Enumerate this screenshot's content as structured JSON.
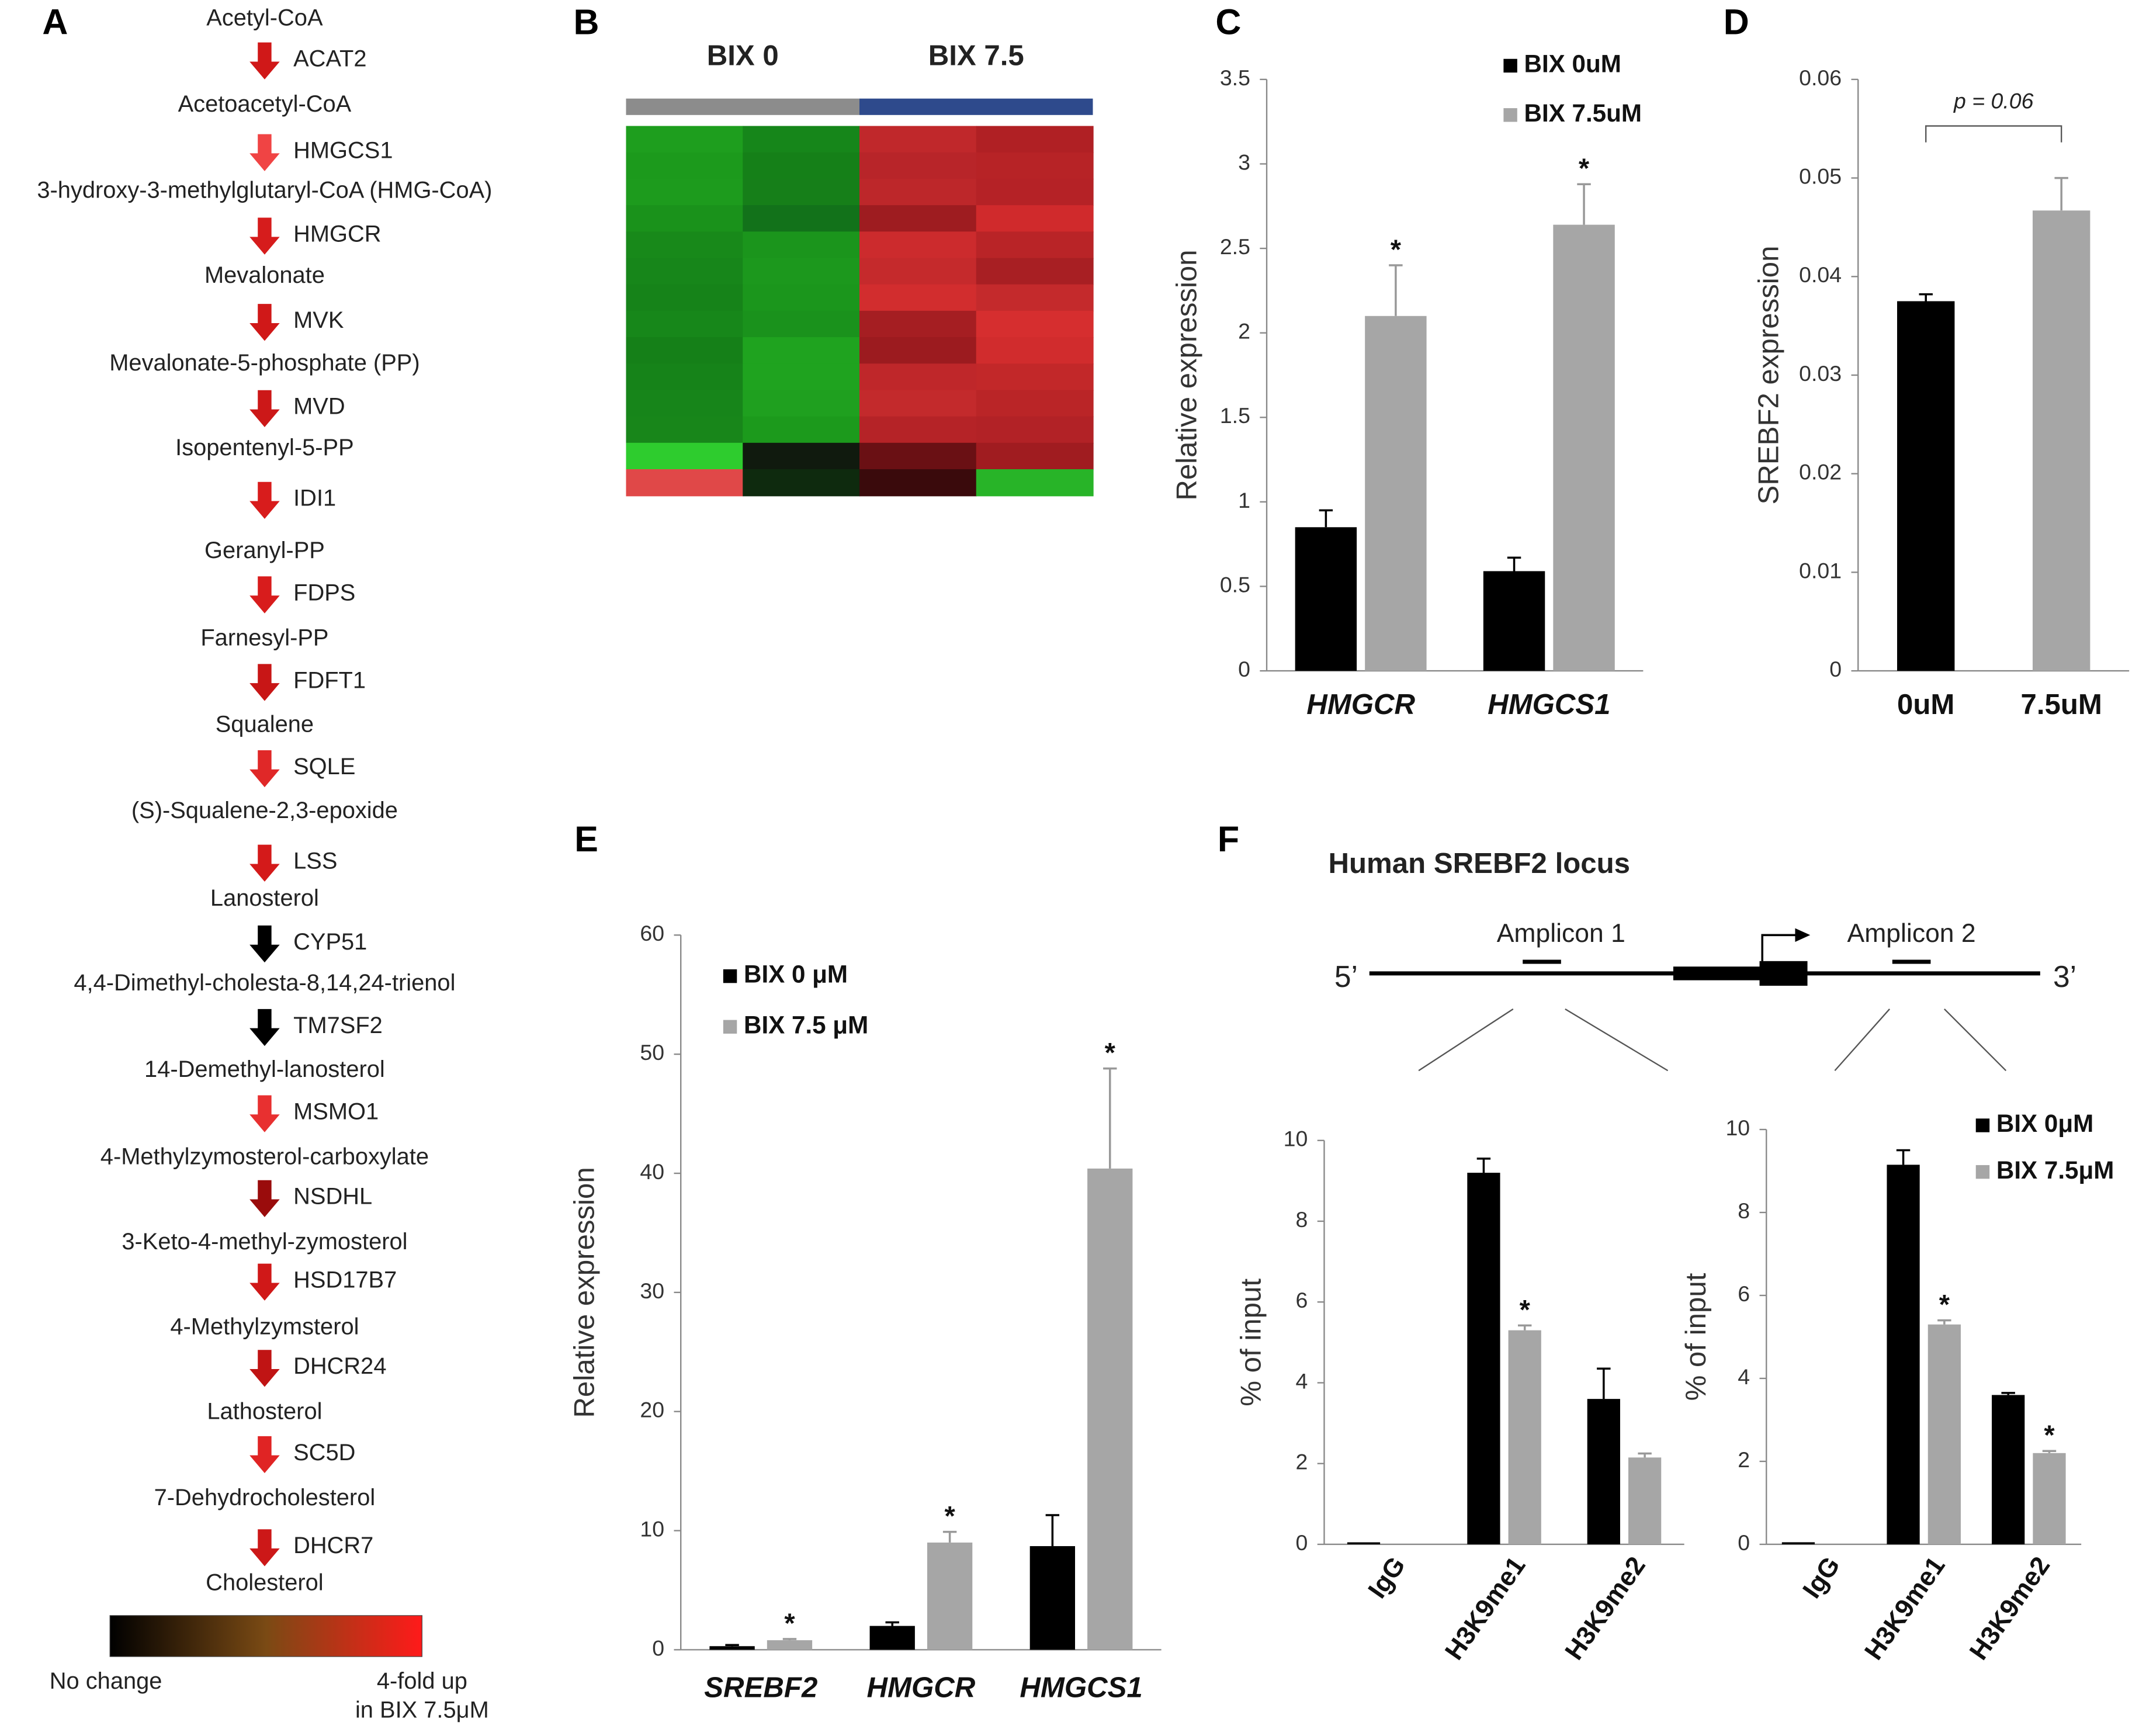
{
  "panel_labels": [
    "A",
    "B",
    "C",
    "D",
    "E",
    "F"
  ],
  "pathway": {
    "metabolites": [
      "Acetyl-CoA",
      "Acetoacetyl-CoA",
      "3-hydroxy-3-methylglutaryl-CoA (HMG-CoA)",
      "Mevalonate",
      "Mevalonate-5-phosphate (PP)",
      "Isopentenyl-5-PP",
      "Geranyl-PP",
      "Farnesyl-PP",
      "Squalene",
      "(S)-Squalene-2,3-epoxide",
      "Lanosterol",
      "4,4-Dimethyl-cholesta-8,14,24-trienol",
      "14-Demethyl-lanosterol",
      "4-Methylzymosterol-carboxylate",
      "3-Keto-4-methyl-zymosterol",
      "4-Methylzymsterol",
      "Lathosterol",
      "7-Dehydrocholesterol",
      "Cholesterol"
    ],
    "enzymes": [
      "ACAT2",
      "HMGCS1",
      "HMGCR",
      "MVK",
      "MVD",
      "IDI1",
      "FDPS",
      "FDFT1",
      "SQLE",
      "LSS",
      "CYP51",
      "TM7SF2",
      "MSMO1",
      "NSDHL",
      "HSD17B7",
      "DHCR24",
      "SC5D",
      "DHCR7"
    ],
    "arrow_colors": [
      "#d01818",
      "#f04444",
      "#d61c1c",
      "#d01818",
      "#cc1818",
      "#d81c1c",
      "#d81c1c",
      "#c81616",
      "#e02828",
      "#d41a1a",
      "#000000",
      "#000000",
      "#e83030",
      "#9a0c0c",
      "#d01818",
      "#c01414",
      "#e02424",
      "#cc1818"
    ],
    "scale": {
      "low": "No change",
      "high": [
        "4-fold up",
        "in BIX 7.5μM"
      ],
      "colors": [
        "#000000",
        "#7a4a14",
        "#ff1a1a"
      ]
    }
  },
  "heatmap": {
    "groups": [
      {
        "name": "BIX 0",
        "color": "#8c8c8c"
      },
      {
        "name": "BIX 7.5",
        "color": "#2e4a8c"
      }
    ],
    "rows": [
      [
        "#1e9e1e",
        "#16861a",
        "#c0282b",
        "#b02024"
      ],
      [
        "#1c9a1c",
        "#158018",
        "#b82529",
        "#b72326"
      ],
      [
        "#1d9b1d",
        "#167f19",
        "#bd272a",
        "#b52226"
      ],
      [
        "#1a921b",
        "#12721a",
        "#9e1c20",
        "#d02a2c"
      ],
      [
        "#18891a",
        "#1b951c",
        "#cc2b2d",
        "#b92427"
      ],
      [
        "#17861a",
        "#1c981d",
        "#c52a2c",
        "#a81f23"
      ],
      [
        "#168319",
        "#1b961c",
        "#d22d2e",
        "#c42a2c"
      ],
      [
        "#17871a",
        "#1a921c",
        "#a51e22",
        "#d62e2f"
      ],
      [
        "#158018",
        "#1fa31f",
        "#9c1b1f",
        "#d12c2d"
      ],
      [
        "#168319",
        "#1fa31f",
        "#bf272a",
        "#c22829"
      ],
      [
        "#17851a",
        "#1fa01f",
        "#c32a2c",
        "#ba2527"
      ],
      [
        "#18861a",
        "#1c9a1c",
        "#b52327",
        "#b22226"
      ],
      [
        "#2ecc2e",
        "#101a0e",
        "#6a1014",
        "#a01c20"
      ],
      [
        "#e04848",
        "#0e2a0e",
        "#3a0a0c",
        "#28b428"
      ]
    ]
  },
  "locus": {
    "title": "Human SREBF2 locus",
    "five_prime": "5’",
    "three_prime": "3’",
    "amplicons": [
      "Amplicon 1",
      "Amplicon 2"
    ]
  },
  "chart_data": [
    {
      "type": "bar",
      "ylabel": "Relative expression",
      "categories": [
        "HMGCR",
        "HMGCS1"
      ],
      "ylim": [
        0,
        3.5
      ],
      "yticks": [
        0,
        0.5,
        1,
        1.5,
        2,
        2.5,
        3,
        3.5
      ],
      "series": [
        {
          "name": "BIX 0uM",
          "color": "#000000",
          "values": [
            0.85,
            0.59
          ],
          "errors": [
            0.1,
            0.08
          ]
        },
        {
          "name": "BIX 7.5uM",
          "color": "#a6a6a6",
          "values": [
            2.1,
            2.64
          ],
          "errors": [
            0.3,
            0.24
          ],
          "stars": [
            "*",
            "*"
          ]
        }
      ]
    },
    {
      "type": "bar",
      "ylabel": "SREBF2 expression",
      "categories": [
        "0uM",
        "7.5uM"
      ],
      "ylim": [
        0,
        0.06
      ],
      "yticks": [
        0,
        0.01,
        0.02,
        0.03,
        0.04,
        0.05,
        0.06
      ],
      "values": [
        0.0375,
        0.0467
      ],
      "errors": [
        0.0007,
        0.0033
      ],
      "colors": [
        "#000000",
        "#a6a6a6"
      ],
      "annotation": "p = 0.06"
    },
    {
      "type": "bar",
      "ylabel": "Relative expression",
      "categories": [
        "SREBF2",
        "HMGCR",
        "HMGCS1"
      ],
      "ylim": [
        0,
        60
      ],
      "yticks": [
        0,
        10,
        20,
        30,
        40,
        50,
        60
      ],
      "series": [
        {
          "name": "BIX 0 μM",
          "color": "#000000",
          "values": [
            0.3,
            2.0,
            8.7
          ],
          "errors": [
            0.1,
            0.3,
            2.6
          ]
        },
        {
          "name": "BIX 7.5 μM",
          "color": "#a6a6a6",
          "values": [
            0.8,
            9.0,
            40.4
          ],
          "errors": [
            0.1,
            0.9,
            8.4
          ],
          "stars": [
            "*",
            "*",
            "*"
          ]
        }
      ]
    },
    {
      "type": "bar",
      "ylabel": "% of input",
      "categories": [
        "IgG",
        "H3K9me1",
        "H3K9me2"
      ],
      "ylim": [
        0,
        10
      ],
      "yticks": [
        0,
        2,
        4,
        6,
        8,
        10
      ],
      "series": [
        {
          "name": "BIX 0μM",
          "color": "#000000",
          "values": [
            0.05,
            9.2,
            3.6
          ],
          "errors": [
            0,
            0.35,
            0.75
          ]
        },
        {
          "name": "BIX 7.5μM",
          "color": "#a6a6a6",
          "values": [
            0,
            5.3,
            2.15
          ],
          "errors": [
            0,
            0.12,
            0.1
          ],
          "stars": [
            null,
            "*",
            null
          ]
        }
      ]
    },
    {
      "type": "bar",
      "ylabel": "% of input",
      "categories": [
        "IgG",
        "H3K9me1",
        "H3K9me2"
      ],
      "ylim": [
        0,
        10
      ],
      "yticks": [
        0,
        2,
        4,
        6,
        8,
        10
      ],
      "series": [
        {
          "name": "BIX 0μM",
          "color": "#000000",
          "values": [
            0.05,
            9.15,
            3.6
          ],
          "errors": [
            0,
            0.35,
            0.05
          ]
        },
        {
          "name": "BIX 7.5μM",
          "color": "#a6a6a6",
          "values": [
            0,
            5.3,
            2.2
          ],
          "errors": [
            0,
            0.1,
            0.05
          ],
          "stars": [
            null,
            "*",
            "*"
          ]
        }
      ]
    }
  ]
}
